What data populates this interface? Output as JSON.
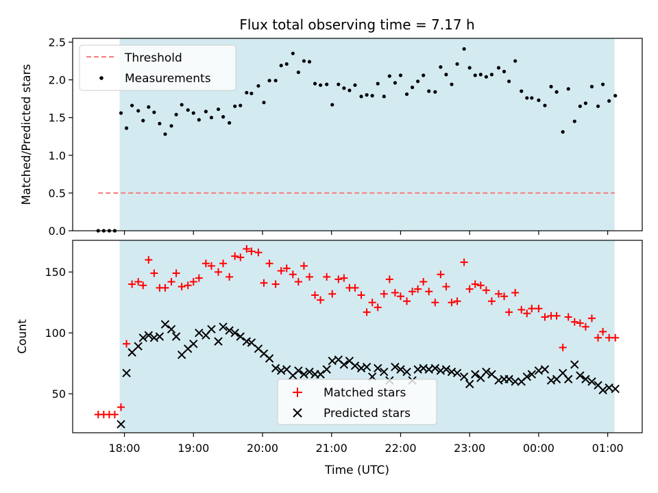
{
  "figure": {
    "title": "Flux total observing time = 7.17 h",
    "xlabel": "Time (UTC)",
    "x_ticks": [
      "18:00",
      "19:00",
      "20:00",
      "21:00",
      "22:00",
      "23:00",
      "00:00",
      "01:00"
    ],
    "colors": {
      "shade": "#d4eaf1",
      "threshold": "#f47c7c",
      "matched": "#ff0000",
      "predicted": "#000000",
      "measurement": "#000000"
    }
  },
  "chart_data": [
    {
      "type": "scatter",
      "ylabel": "Matched/Predicted stars",
      "x_units": "hours since 18:00 UTC",
      "xlim": [
        -0.75,
        7.5
      ],
      "ylim": [
        0,
        2.55
      ],
      "y_ticks": [
        "0.0",
        "0.5",
        "1.0",
        "1.5",
        "2.0",
        "2.5"
      ],
      "shaded_x_range": [
        -0.07,
        7.1
      ],
      "legend": {
        "placement": "top-left",
        "entries": [
          {
            "label": "Threshold",
            "marker": "dashed-line"
          },
          {
            "label": "Measurements",
            "marker": "dot"
          }
        ]
      },
      "series": [
        {
          "name": "Threshold",
          "kind": "line",
          "x": [
            -0.38,
            7.1
          ],
          "y": [
            0.5,
            0.5
          ]
        },
        {
          "name": "Measurements",
          "kind": "scatter",
          "x": [
            -0.38,
            -0.3,
            -0.22,
            -0.14,
            -0.05,
            0.03,
            0.11,
            0.2,
            0.27,
            0.35,
            0.43,
            0.51,
            0.59,
            0.68,
            0.75,
            0.83,
            0.92,
            1.0,
            1.08,
            1.18,
            1.26,
            1.36,
            1.43,
            1.52,
            1.6,
            1.68,
            1.77,
            1.84,
            1.94,
            2.02,
            2.1,
            2.19,
            2.27,
            2.35,
            2.44,
            2.52,
            2.6,
            2.68,
            2.76,
            2.84,
            2.93,
            3.01,
            3.1,
            3.18,
            3.26,
            3.34,
            3.43,
            3.51,
            3.59,
            3.67,
            3.76,
            3.84,
            3.92,
            4.0,
            4.09,
            4.17,
            4.25,
            4.33,
            4.41,
            4.5,
            4.58,
            4.66,
            4.74,
            4.82,
            4.92,
            5.0,
            5.08,
            5.16,
            5.24,
            5.32,
            5.42,
            5.5,
            5.57,
            5.66,
            5.75,
            5.83,
            5.9,
            6.0,
            6.09,
            6.18,
            6.26,
            6.35,
            6.43,
            6.52,
            6.6,
            6.68,
            6.77,
            6.86,
            6.93,
            7.02,
            7.11
          ],
          "y": [
            0.0,
            0.0,
            0.0,
            0.0,
            1.56,
            1.36,
            1.66,
            1.59,
            1.46,
            1.64,
            1.57,
            1.42,
            1.28,
            1.39,
            1.54,
            1.67,
            1.6,
            1.56,
            1.47,
            1.58,
            1.5,
            1.61,
            1.51,
            1.43,
            1.65,
            1.66,
            1.83,
            1.82,
            1.92,
            1.7,
            1.99,
            1.99,
            2.19,
            2.21,
            2.35,
            2.1,
            2.25,
            2.24,
            1.95,
            1.93,
            1.94,
            1.67,
            1.94,
            1.89,
            1.86,
            1.93,
            1.78,
            1.8,
            1.79,
            1.95,
            1.78,
            2.05,
            1.96,
            2.06,
            1.81,
            1.9,
            1.98,
            2.06,
            1.85,
            1.84,
            2.17,
            2.07,
            1.94,
            2.21,
            2.41,
            2.16,
            2.06,
            2.07,
            2.04,
            2.07,
            2.16,
            2.11,
            1.98,
            2.25,
            1.85,
            1.76,
            1.76,
            1.73,
            1.66,
            1.91,
            1.84,
            1.31,
            1.88,
            1.45,
            1.65,
            1.69,
            1.91,
            1.65,
            1.94,
            1.72,
            1.79
          ]
        }
      ]
    },
    {
      "type": "scatter",
      "ylabel": "Count",
      "x_units": "hours since 18:00 UTC",
      "xlim": [
        -0.75,
        7.5
      ],
      "ylim": [
        18,
        176
      ],
      "y_ticks": [
        "50",
        "100",
        "150"
      ],
      "shaded_x_range": [
        -0.07,
        7.1
      ],
      "legend": {
        "placement": "lower-center",
        "entries": [
          {
            "label": "Matched stars",
            "marker": "plus"
          },
          {
            "label": "Predicted stars",
            "marker": "x"
          }
        ]
      },
      "series": [
        {
          "name": "Matched stars",
          "x": [
            -0.38,
            -0.3,
            -0.22,
            -0.14,
            -0.05,
            0.03,
            0.11,
            0.2,
            0.27,
            0.35,
            0.43,
            0.51,
            0.59,
            0.68,
            0.75,
            0.83,
            0.92,
            1.0,
            1.08,
            1.18,
            1.26,
            1.36,
            1.43,
            1.52,
            1.6,
            1.68,
            1.77,
            1.84,
            1.94,
            2.02,
            2.1,
            2.19,
            2.27,
            2.35,
            2.44,
            2.52,
            2.6,
            2.68,
            2.76,
            2.84,
            2.93,
            3.01,
            3.1,
            3.18,
            3.26,
            3.34,
            3.43,
            3.51,
            3.59,
            3.67,
            3.76,
            3.84,
            3.92,
            4.0,
            4.09,
            4.17,
            4.25,
            4.33,
            4.41,
            4.5,
            4.58,
            4.66,
            4.74,
            4.82,
            4.92,
            5.0,
            5.08,
            5.16,
            5.24,
            5.32,
            5.42,
            5.5,
            5.57,
            5.66,
            5.75,
            5.83,
            5.9,
            6.0,
            6.09,
            6.18,
            6.26,
            6.35,
            6.43,
            6.52,
            6.6,
            6.68,
            6.77,
            6.86,
            6.93,
            7.02,
            7.11
          ],
          "y": [
            33,
            33,
            33,
            33,
            39,
            91,
            140,
            142,
            139,
            160,
            149,
            137,
            137,
            142,
            149,
            138,
            139,
            142,
            145,
            157,
            155,
            150,
            157,
            146,
            163,
            162,
            169,
            167,
            166,
            141,
            157,
            140,
            151,
            153,
            148,
            142,
            155,
            146,
            131,
            127,
            146,
            132,
            144,
            145,
            137,
            137,
            131,
            117,
            125,
            121,
            132,
            144,
            133,
            130,
            126,
            134,
            136,
            142,
            134,
            125,
            148,
            138,
            125,
            126,
            158,
            136,
            140,
            139,
            135,
            126,
            132,
            130,
            117,
            133,
            119,
            116,
            120,
            120,
            113,
            114,
            114,
            88,
            113,
            109,
            108,
            105,
            112,
            96,
            101,
            96,
            96
          ]
        },
        {
          "name": "Predicted stars",
          "x": [
            -0.05,
            0.03,
            0.11,
            0.2,
            0.27,
            0.35,
            0.43,
            0.51,
            0.59,
            0.68,
            0.75,
            0.83,
            0.92,
            1.0,
            1.08,
            1.18,
            1.26,
            1.36,
            1.43,
            1.52,
            1.6,
            1.68,
            1.77,
            1.84,
            1.94,
            2.02,
            2.1,
            2.19,
            2.27,
            2.35,
            2.44,
            2.52,
            2.6,
            2.68,
            2.76,
            2.84,
            2.93,
            3.01,
            3.1,
            3.18,
            3.26,
            3.34,
            3.43,
            3.51,
            3.59,
            3.67,
            3.76,
            3.84,
            3.92,
            4.0,
            4.09,
            4.17,
            4.25,
            4.33,
            4.41,
            4.5,
            4.58,
            4.66,
            4.74,
            4.82,
            4.92,
            5.0,
            5.08,
            5.16,
            5.24,
            5.32,
            5.42,
            5.5,
            5.57,
            5.66,
            5.75,
            5.83,
            5.9,
            6.0,
            6.09,
            6.18,
            6.26,
            6.35,
            6.43,
            6.52,
            6.6,
            6.68,
            6.77,
            6.86,
            6.93,
            7.02,
            7.11
          ],
          "y": [
            25,
            67,
            84,
            89,
            96,
            98,
            96,
            97,
            107,
            103,
            97,
            82,
            87,
            91,
            100,
            98,
            103,
            93,
            105,
            102,
            100,
            97,
            93,
            92,
            87,
            83,
            79,
            71,
            69,
            70,
            65,
            69,
            66,
            68,
            66,
            66,
            70,
            77,
            78,
            74,
            77,
            73,
            71,
            72,
            64,
            71,
            68,
            61,
            72,
            70,
            68,
            61,
            70,
            71,
            70,
            71,
            69,
            70,
            68,
            67,
            64,
            58,
            66,
            63,
            68,
            66,
            61,
            62,
            62,
            60,
            60,
            64,
            66,
            69,
            70,
            61,
            62,
            67,
            62,
            74,
            65,
            62,
            60,
            57,
            53,
            55,
            54
          ]
        }
      ]
    }
  ]
}
